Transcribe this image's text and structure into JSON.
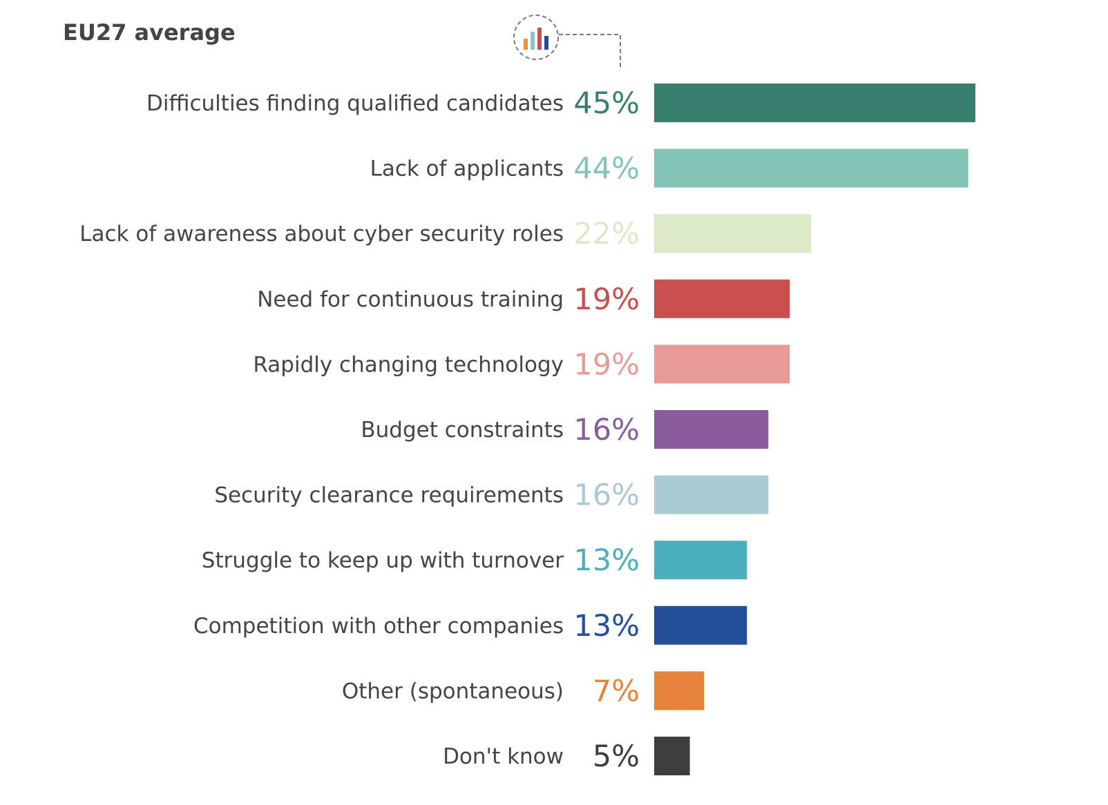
{
  "chart_data": {
    "type": "bar",
    "orientation": "horizontal",
    "title": "EU27 average",
    "categories": [
      "Difficulties finding qualified candidates",
      "Lack of applicants",
      "Lack of awareness about cyber security roles",
      "Need for continuous training",
      "Rapidly changing technology",
      "Budget constraints",
      "Security clearance requirements",
      "Struggle to keep up with turnover",
      "Competition with other companies",
      "Other (spontaneous)",
      "Don't know"
    ],
    "values": [
      45,
      44,
      22,
      19,
      19,
      16,
      16,
      13,
      13,
      7,
      5
    ],
    "value_labels": [
      "45%",
      "44%",
      "22%",
      "19%",
      "19%",
      "16%",
      "16%",
      "13%",
      "13%",
      "7%",
      "5%"
    ],
    "colors": [
      "#3a7f6d",
      "#83c4b6",
      "#dde9c6",
      "#c94f4f",
      "#e89a96",
      "#8b5c9b",
      "#aac9d2",
      "#4caebc",
      "#234f9a",
      "#e6823a",
      "#3e3e3e"
    ],
    "unit": "%",
    "grid": false,
    "xlim": [
      0,
      45
    ]
  },
  "icon": "bar-chart-icon"
}
